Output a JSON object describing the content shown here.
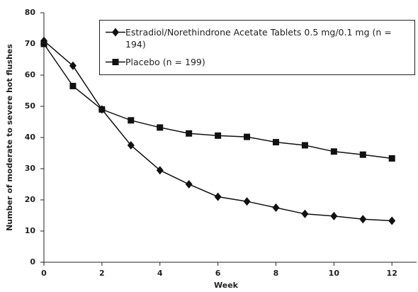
{
  "chart_data": {
    "type": "line",
    "x_label": "Week",
    "y_label": "Number of moderate to severe hot flushes",
    "x": [
      0,
      1,
      2,
      3,
      4,
      5,
      6,
      7,
      8,
      9,
      10,
      11,
      12
    ],
    "series": [
      {
        "name": "Estradiol/Norethindrone Acetate Tablets 0.5 mg/0.1 mg (n = 194)",
        "color": "#111111",
        "marker": "diamond",
        "values": [
          71,
          63,
          49,
          37.5,
          29.5,
          25,
          21,
          19.5,
          17.5,
          15.5,
          14.8,
          13.8,
          13.3
        ]
      },
      {
        "name": "Placebo (n = 199)",
        "color": "#111111",
        "marker": "square",
        "values": [
          70,
          56.5,
          49,
          45.5,
          43.2,
          41.3,
          40.6,
          40.2,
          38.5,
          37.5,
          35.5,
          34.5,
          33.3
        ]
      }
    ],
    "xlim": [
      0,
      12.85
    ],
    "xticks": [
      0,
      2,
      4,
      6,
      8,
      10,
      12
    ],
    "ylim": [
      0,
      80
    ],
    "yticks": [
      0,
      10,
      20,
      30,
      40,
      50,
      60,
      70,
      80
    ],
    "grid": false
  }
}
